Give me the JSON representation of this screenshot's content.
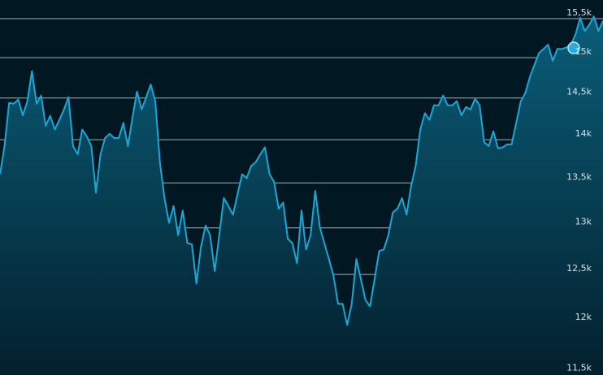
{
  "chart_data": {
    "type": "area",
    "title": "",
    "xlabel": "",
    "ylabel": "",
    "ylim": [
      11500,
      15500
    ],
    "y_scale": "log",
    "grid": true,
    "y_ticks": [
      {
        "value": 15500,
        "label": "15,5k"
      },
      {
        "value": 15000,
        "label": "15k"
      },
      {
        "value": 14500,
        "label": "14,5k"
      },
      {
        "value": 14000,
        "label": "14k"
      },
      {
        "value": 13500,
        "label": "13,5k"
      },
      {
        "value": 13000,
        "label": "13k"
      },
      {
        "value": 12500,
        "label": "12,5k"
      },
      {
        "value": 12000,
        "label": "12k"
      },
      {
        "value": 11500,
        "label": "11,5k"
      }
    ],
    "values": [
      13600,
      13925,
      14440,
      14430,
      14480,
      14290,
      14460,
      14830,
      14430,
      14530,
      14165,
      14285,
      14120,
      14235,
      14360,
      14510,
      13925,
      13830,
      14120,
      14040,
      13925,
      13390,
      13830,
      14020,
      14070,
      14020,
      14020,
      14200,
      13925,
      14265,
      14580,
      14360,
      14510,
      14665,
      14460,
      13740,
      13330,
      13055,
      13240,
      12920,
      13190,
      12835,
      12820,
      12405,
      12795,
      13025,
      12920,
      12535,
      12920,
      13330,
      13240,
      13145,
      13375,
      13600,
      13555,
      13695,
      13740,
      13830,
      13910,
      13600,
      13510,
      13210,
      13280,
      12880,
      12835,
      12620,
      13190,
      12765,
      12920,
      13410,
      13010,
      12835,
      12665,
      12490,
      12195,
      12195,
      11980,
      12195,
      12665,
      12450,
      12235,
      12170,
      12450,
      12750,
      12765,
      12920,
      13170,
      13210,
      13330,
      13145,
      13465,
      13695,
      14120,
      14315,
      14235,
      14410,
      14410,
      14530,
      14410,
      14410,
      14460,
      14290,
      14390,
      14360,
      14490,
      14410,
      13970,
      13925,
      14100,
      13900,
      13910,
      13945,
      13945,
      14200,
      14460,
      14560,
      14760,
      14910,
      15060,
      15110,
      15165,
      14960,
      15110,
      15110,
      15130,
      15165,
      15300,
      15510,
      15340,
      15420,
      15530,
      15340,
      15470
    ],
    "marker": {
      "value": 15000
    },
    "colors": {
      "background": "#011822",
      "line": "#1aa7d6",
      "fill_top": "#0a5d78",
      "fill_bottom": "#03202d",
      "grid": "#9fb0b8"
    }
  }
}
